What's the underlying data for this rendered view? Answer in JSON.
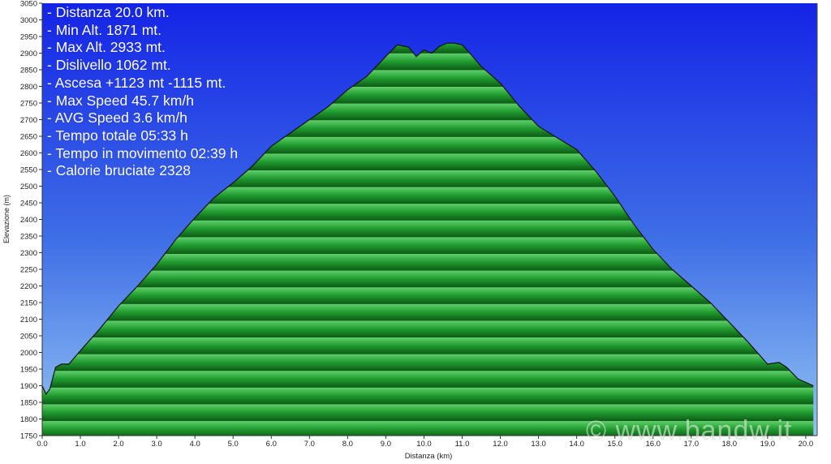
{
  "chart_data": {
    "type": "area",
    "title": "",
    "xlabel": "Distanza  (km)",
    "ylabel": "Elevazione (m)",
    "xlim": [
      0,
      20.3
    ],
    "ylim": [
      1750,
      3050
    ],
    "x_ticks": [
      "0.0",
      "1.0",
      "2.0",
      "3.0",
      "4.0",
      "5.0",
      "6.0",
      "7.0",
      "8.0",
      "9.0",
      "10.0",
      "11.0",
      "12.0",
      "13.0",
      "14.0",
      "15.0",
      "16.0",
      "17.0",
      "18.0",
      "19.0",
      "20.0"
    ],
    "y_ticks": [
      "1750",
      "1800",
      "1850",
      "1900",
      "1950",
      "2000",
      "2050",
      "2100",
      "2150",
      "2200",
      "2250",
      "2300",
      "2350",
      "2400",
      "2450",
      "2500",
      "2550",
      "2600",
      "2650",
      "2700",
      "2750",
      "2800",
      "2850",
      "2900",
      "2950",
      "3000",
      "3050"
    ],
    "grid": false,
    "colors": {
      "fill": "#1f9a2e",
      "line": "#111111",
      "sky_top": "#1424e6",
      "sky_bottom": "#8fc0f0"
    },
    "x": [
      0.0,
      0.1,
      0.2,
      0.35,
      0.5,
      0.7,
      1.0,
      1.5,
      2.0,
      2.5,
      3.0,
      3.5,
      4.0,
      4.5,
      5.0,
      5.5,
      6.0,
      6.5,
      7.0,
      7.5,
      8.0,
      8.5,
      9.0,
      9.3,
      9.6,
      9.8,
      10.0,
      10.2,
      10.4,
      10.6,
      10.8,
      11.0,
      11.2,
      11.5,
      12.0,
      12.5,
      13.0,
      13.5,
      14.0,
      14.5,
      15.0,
      15.5,
      16.0,
      16.5,
      17.0,
      17.5,
      18.0,
      18.5,
      19.0,
      19.3,
      19.5,
      19.8,
      20.2
    ],
    "values": [
      1900,
      1875,
      1890,
      1955,
      1965,
      1965,
      2005,
      2070,
      2140,
      2200,
      2265,
      2340,
      2405,
      2465,
      2510,
      2560,
      2620,
      2660,
      2700,
      2740,
      2790,
      2830,
      2890,
      2925,
      2918,
      2890,
      2910,
      2900,
      2920,
      2930,
      2930,
      2925,
      2900,
      2860,
      2810,
      2740,
      2680,
      2645,
      2610,
      2545,
      2470,
      2385,
      2310,
      2250,
      2200,
      2150,
      2090,
      2030,
      1965,
      1970,
      1955,
      1920,
      1900
    ]
  },
  "stats": [
    "- Distanza 20.0 km.",
    "- Min Alt. 1871 mt.",
    "- Max Alt. 2933 mt.",
    "- Dislivello 1062 mt.",
    "- Ascesa +1123 mt -1115 mt.",
    "- Max Speed 45.7 km/h",
    "- AVG Speed 3.6 km/h",
    "- Tempo totale 05:33 h",
    "- Tempo in movimento 02:39 h",
    "- Calorie bruciate 2328"
  ],
  "watermark": "© www.bandw.it"
}
